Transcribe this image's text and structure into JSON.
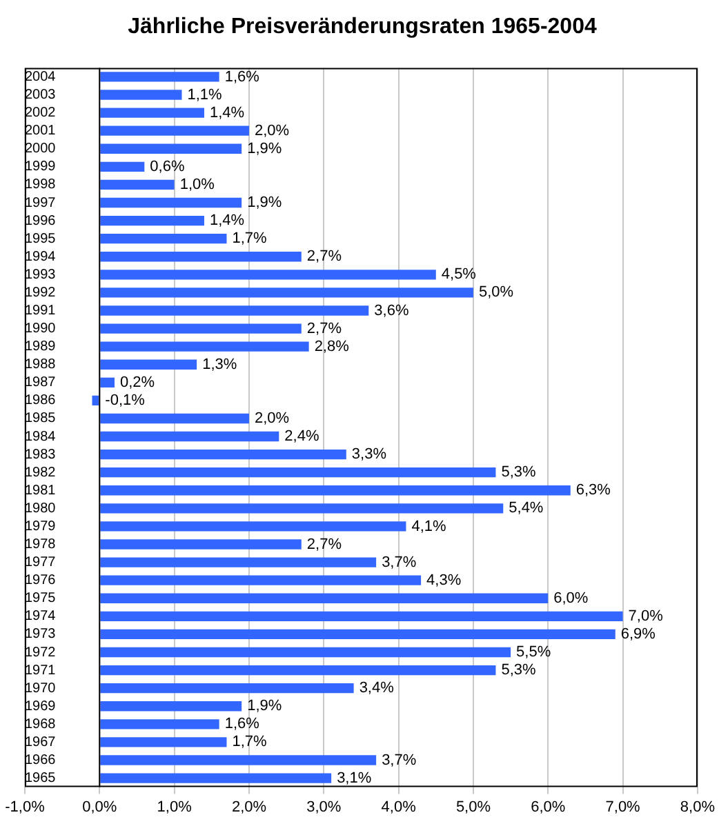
{
  "chart_data": {
    "type": "bar",
    "orientation": "horizontal",
    "title": "Jährliche Preisveränderungsraten 1965-2004",
    "categories": [
      "2004",
      "2003",
      "2002",
      "2001",
      "2000",
      "1999",
      "1998",
      "1997",
      "1996",
      "1995",
      "1994",
      "1993",
      "1992",
      "1991",
      "1990",
      "1989",
      "1988",
      "1987",
      "1986",
      "1985",
      "1984",
      "1983",
      "1982",
      "1981",
      "1980",
      "1979",
      "1978",
      "1977",
      "1976",
      "1975",
      "1974",
      "1973",
      "1972",
      "1971",
      "1970",
      "1969",
      "1968",
      "1967",
      "1966",
      "1965"
    ],
    "values": [
      1.6,
      1.1,
      1.4,
      2.0,
      1.9,
      0.6,
      1.0,
      1.9,
      1.4,
      1.7,
      2.7,
      4.5,
      5.0,
      3.6,
      2.7,
      2.8,
      1.3,
      0.2,
      -0.1,
      2.0,
      2.4,
      3.3,
      5.3,
      6.3,
      5.4,
      4.1,
      2.7,
      3.7,
      4.3,
      6.0,
      7.0,
      6.9,
      5.5,
      5.3,
      3.4,
      1.9,
      1.6,
      1.7,
      3.7,
      3.1
    ],
    "value_labels": [
      "1,6%",
      "1,1%",
      "1,4%",
      "2,0%",
      "1,9%",
      "0,6%",
      "1,0%",
      "1,9%",
      "1,4%",
      "1,7%",
      "2,7%",
      "4,5%",
      "5,0%",
      "3,6%",
      "2,7%",
      "2,8%",
      "1,3%",
      "0,2%",
      "-0,1%",
      "2,0%",
      "2,4%",
      "3,3%",
      "5,3%",
      "6,3%",
      "5,4%",
      "4,1%",
      "2,7%",
      "3,7%",
      "4,3%",
      "6,0%",
      "7,0%",
      "6,9%",
      "5,5%",
      "5,3%",
      "3,4%",
      "1,9%",
      "1,6%",
      "1,7%",
      "3,7%",
      "3,1%"
    ],
    "color": "#3366ff",
    "xlim": [
      -1,
      8
    ],
    "xticks": [
      {
        "value": -1,
        "label": "-1,0%"
      },
      {
        "value": 0,
        "label": "0,0%"
      },
      {
        "value": 1,
        "label": "1,0%"
      },
      {
        "value": 2,
        "label": "2,0%"
      },
      {
        "value": 3,
        "label": "3,0%"
      },
      {
        "value": 4,
        "label": "4,0%"
      },
      {
        "value": 5,
        "label": "5,0%"
      },
      {
        "value": 6,
        "label": "6,0%"
      },
      {
        "value": 7,
        "label": "7,0%"
      },
      {
        "value": 8,
        "label": "8,0%"
      }
    ],
    "grid": "x"
  }
}
